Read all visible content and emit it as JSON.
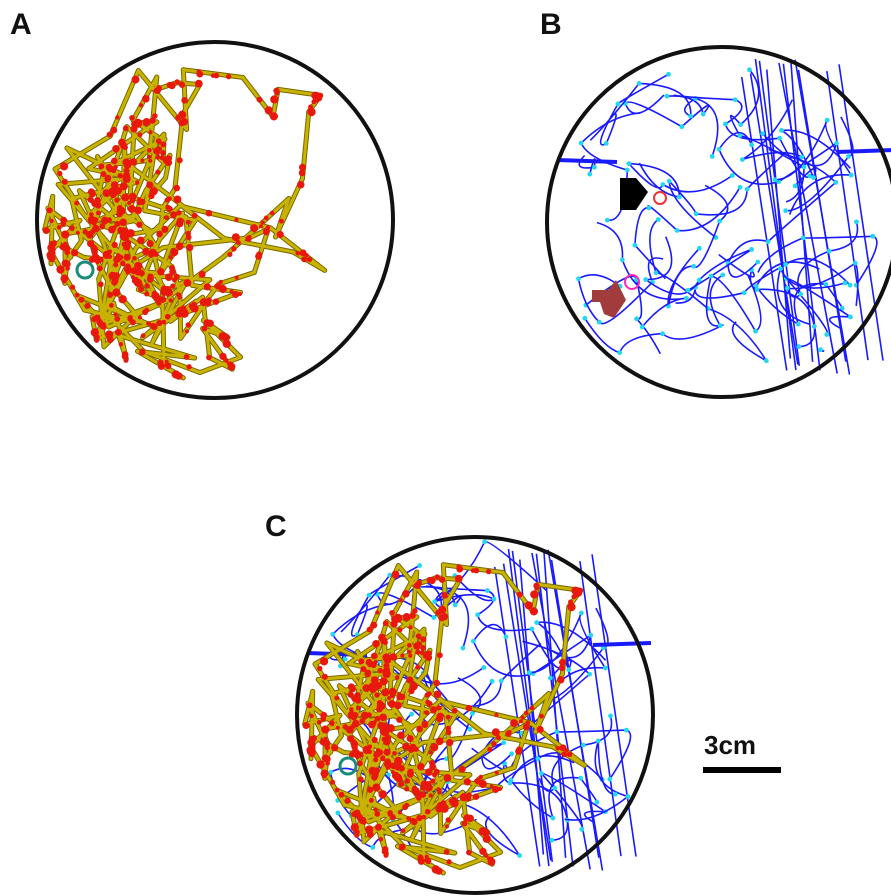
{
  "panels": [
    {
      "label": "A",
      "content": "rodent-path-tracking"
    },
    {
      "label": "B",
      "content": "ant-path-tracking"
    },
    {
      "label": "C",
      "content": "overlay"
    }
  ],
  "scale_bar": {
    "label": "3cm"
  },
  "colors": {
    "arena_border": "#111111",
    "rodent_path": "#c8b400",
    "rodent_points": "#e8180c",
    "ant_path": "#1a1aff",
    "ant_points": "#22d8f0",
    "start_marker": "#1a8a7a",
    "black_arrow": "#000000",
    "red_arrow": "#a23b3b",
    "pink_marker": "#ff2ab0"
  }
}
